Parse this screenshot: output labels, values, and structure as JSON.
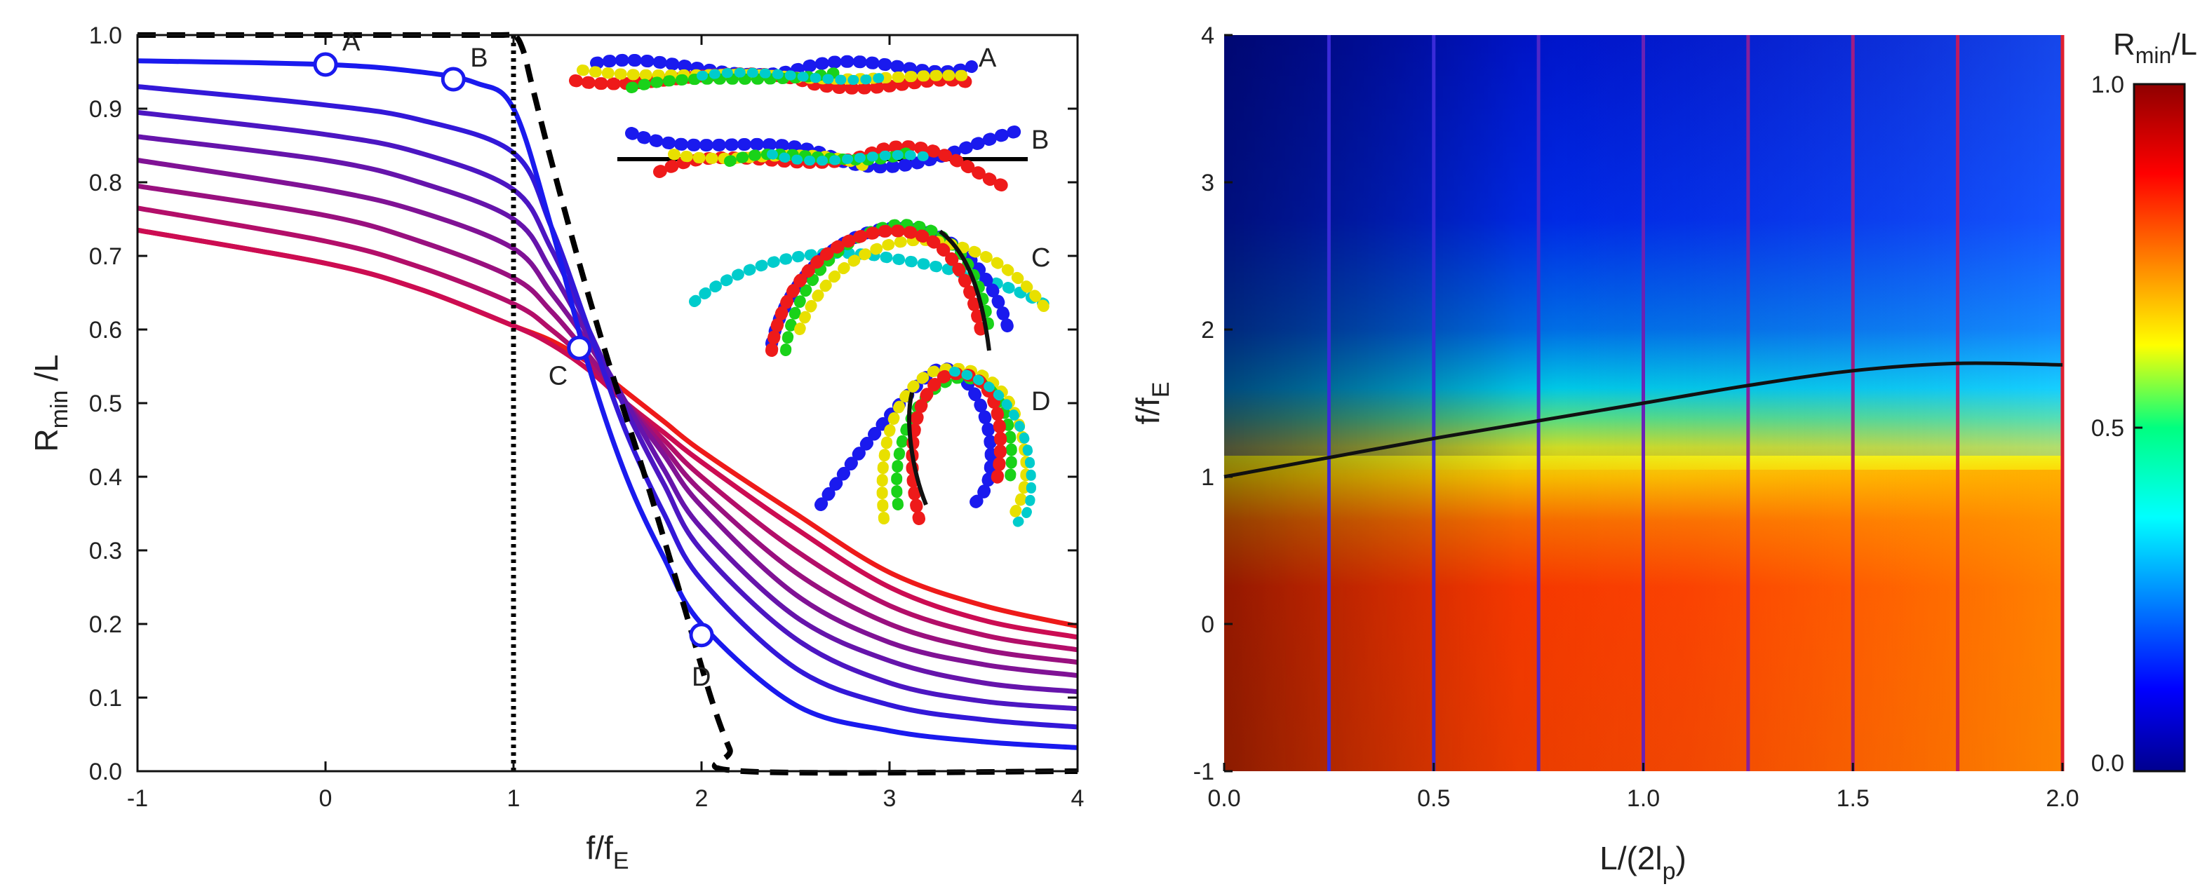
{
  "chart_data": [
    {
      "type": "line",
      "xlabel_main": "f/f",
      "xlabel_sub": "E",
      "ylabel_main": "R",
      "ylabel_sub": "min",
      "ylabel_tail": " /L",
      "xlim": [
        -1,
        4
      ],
      "ylim": [
        0,
        1
      ],
      "xticks": [
        "-1",
        "0",
        "1",
        "2",
        "3",
        "4"
      ],
      "yticks": [
        "0.0",
        "0.1",
        "0.2",
        "0.3",
        "0.4",
        "0.5",
        "0.6",
        "0.7",
        "0.8",
        "0.9",
        "1.0"
      ],
      "series_colors": [
        "#1a1aee",
        "#3318d8",
        "#4c16c2",
        "#6614ab",
        "#801295",
        "#99107f",
        "#b30e69",
        "#cc0c52",
        "#ee1a1a"
      ],
      "series": [
        {
          "x": [
            -1,
            0,
            0.5,
            0.8,
            1.0,
            1.2,
            1.4,
            1.6,
            1.8,
            2.0,
            2.5,
            3.0,
            3.5,
            4.0
          ],
          "values": [
            0.965,
            0.96,
            0.95,
            0.935,
            0.9,
            0.74,
            0.55,
            0.4,
            0.29,
            0.2,
            0.09,
            0.055,
            0.04,
            0.032
          ]
        },
        {
          "x": [
            -1,
            0,
            0.5,
            1.0,
            1.2,
            1.4,
            1.6,
            1.8,
            2.0,
            2.5,
            3.0,
            3.5,
            4.0
          ],
          "values": [
            0.93,
            0.905,
            0.885,
            0.84,
            0.74,
            0.6,
            0.46,
            0.35,
            0.26,
            0.14,
            0.09,
            0.07,
            0.06
          ]
        },
        {
          "x": [
            -1,
            0,
            0.5,
            1.0,
            1.2,
            1.4,
            1.6,
            1.8,
            2.0,
            2.5,
            3.0,
            3.5,
            4.0
          ],
          "values": [
            0.895,
            0.865,
            0.84,
            0.79,
            0.71,
            0.6,
            0.49,
            0.39,
            0.3,
            0.18,
            0.12,
            0.095,
            0.085
          ]
        },
        {
          "x": [
            -1,
            0,
            0.5,
            1.0,
            1.2,
            1.4,
            1.6,
            1.8,
            2.0,
            2.5,
            3.0,
            3.5,
            4.0
          ],
          "values": [
            0.862,
            0.83,
            0.8,
            0.75,
            0.68,
            0.59,
            0.5,
            0.41,
            0.33,
            0.21,
            0.15,
            0.12,
            0.108
          ]
        },
        {
          "x": [
            -1,
            0,
            0.5,
            1.0,
            1.2,
            1.4,
            1.6,
            1.8,
            2.0,
            2.5,
            3.0,
            3.5,
            4.0
          ],
          "values": [
            0.83,
            0.79,
            0.76,
            0.71,
            0.65,
            0.58,
            0.5,
            0.43,
            0.36,
            0.24,
            0.175,
            0.145,
            0.13
          ]
        },
        {
          "x": [
            -1,
            0,
            0.5,
            1.0,
            1.2,
            1.4,
            1.6,
            1.8,
            2.0,
            2.5,
            3.0,
            3.5,
            4.0
          ],
          "values": [
            0.795,
            0.755,
            0.72,
            0.67,
            0.625,
            0.565,
            0.5,
            0.44,
            0.38,
            0.27,
            0.2,
            0.165,
            0.148
          ]
        },
        {
          "x": [
            -1,
            0,
            0.5,
            1.0,
            1.2,
            1.4,
            1.6,
            1.8,
            2.0,
            2.5,
            3.0,
            3.5,
            4.0
          ],
          "values": [
            0.765,
            0.72,
            0.685,
            0.635,
            0.6,
            0.555,
            0.5,
            0.45,
            0.4,
            0.3,
            0.225,
            0.185,
            0.165
          ]
        },
        {
          "x": [
            -1,
            0,
            0.5,
            1.0,
            1.2,
            1.4,
            1.6,
            1.8,
            2.0,
            2.5,
            3.0,
            3.5,
            4.0
          ],
          "values": [
            0.735,
            0.69,
            0.655,
            0.605,
            0.58,
            0.545,
            0.5,
            0.46,
            0.42,
            0.33,
            0.25,
            0.205,
            0.182
          ]
        },
        {
          "x": [
            -1,
            0,
            0.5,
            1.0,
            1.2,
            1.4,
            1.6,
            1.8,
            2.0,
            2.5,
            3.0,
            3.5,
            4.0
          ],
          "values": [
            0.735,
            0.69,
            0.655,
            0.605,
            0.585,
            0.555,
            0.515,
            0.475,
            0.435,
            0.35,
            0.27,
            0.225,
            0.197
          ]
        }
      ],
      "dashed_limit": {
        "x": [
          -1,
          0,
          0.9,
          1.0,
          1.05,
          1.1,
          1.2,
          1.35,
          1.5,
          1.7,
          1.9,
          2.05,
          2.15,
          2.22,
          4.0
        ],
        "values": [
          1.0,
          1.0,
          1.0,
          1.0,
          0.98,
          0.93,
          0.83,
          0.69,
          0.56,
          0.4,
          0.23,
          0.1,
          0.03,
          0.0,
          0.0
        ]
      },
      "vertical_dotted_x": 1.0,
      "points": [
        {
          "label": "A",
          "x": 0.0,
          "y": 0.96
        },
        {
          "label": "B",
          "x": 0.68,
          "y": 0.94
        },
        {
          "label": "C",
          "x": 1.35,
          "y": 0.575
        },
        {
          "label": "D",
          "x": 2.0,
          "y": 0.185
        }
      ],
      "inset_labels": [
        "A",
        "B",
        "C",
        "D"
      ]
    },
    {
      "type": "heatmap",
      "xlabel_main": "L/(2l",
      "xlabel_sub": "p",
      "xlabel_tail": ")",
      "ylabel_main": "f/f",
      "ylabel_sub": "E",
      "xlim": [
        0,
        2
      ],
      "ylim": [
        -1,
        4
      ],
      "xticks": [
        "0.0",
        "0.5",
        "1.0",
        "1.5",
        "2.0"
      ],
      "yticks": [
        "-1",
        "0",
        "1",
        "2",
        "3",
        "4"
      ],
      "colorbar": {
        "title_main": "R",
        "title_sub": "min",
        "title_tail": "/L",
        "ticks": [
          "0.0",
          "0.5",
          "1.0"
        ],
        "range": [
          0,
          1
        ]
      },
      "vertical_lines_x": [
        0.25,
        0.5,
        0.75,
        1.0,
        1.25,
        1.5,
        1.75,
        2.0
      ],
      "boundary_curve": {
        "x": [
          0,
          0.25,
          0.5,
          0.75,
          1.0,
          1.25,
          1.5,
          1.75,
          2.0
        ],
        "values": [
          1.0,
          1.13,
          1.26,
          1.38,
          1.5,
          1.62,
          1.72,
          1.77,
          1.76
        ]
      }
    }
  ]
}
